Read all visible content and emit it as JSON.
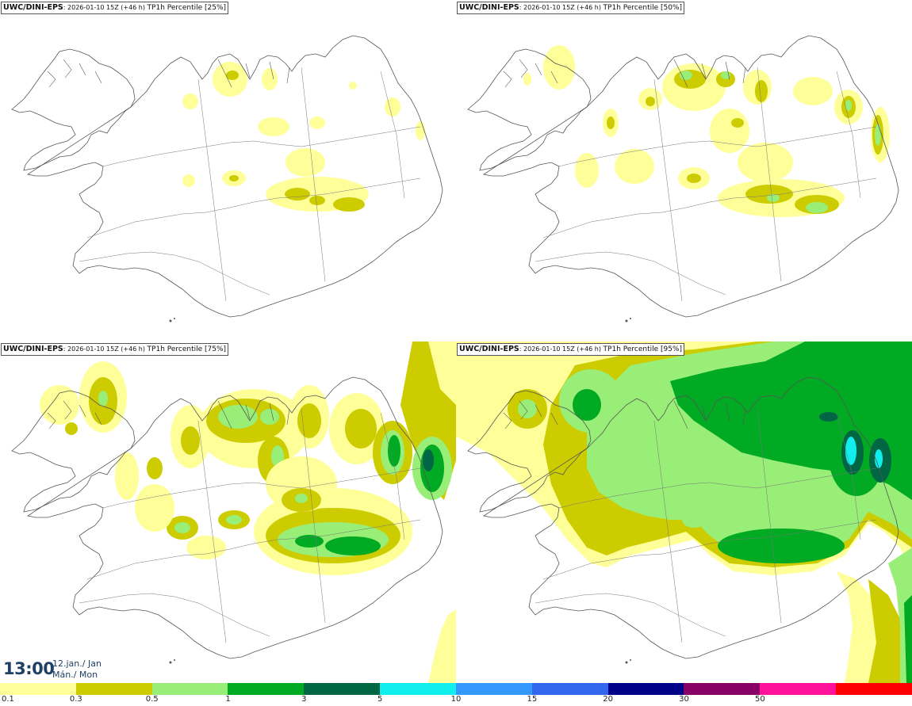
{
  "panels": [
    {
      "model": "UWC/DINI-EPS",
      "info": ": 2026-01-10 15Z (+46 h) ",
      "param": "TP1h Percentile [25%]"
    },
    {
      "model": "UWC/DINI-EPS",
      "info": ": 2026-01-10 15Z (+46 h) ",
      "param": "TP1h Percentile [50%]"
    },
    {
      "model": "UWC/DINI-EPS",
      "info": ": 2026-01-10 15Z (+46 h) ",
      "param": "TP1h Percentile [75%]"
    },
    {
      "model": "UWC/DINI-EPS",
      "info": ": 2026-01-10 15Z (+46 h) ",
      "param": "TP1h Percentile [95%]"
    }
  ],
  "timestamp": {
    "time": "13:00",
    "date": "12.jan./ Jan",
    "day": "Mán./ Mon"
  },
  "colorbar": {
    "colors": [
      "#ffff99",
      "#cccc00",
      "#99ee77",
      "#00aa22",
      "#006644",
      "#11eeee",
      "#3399ff",
      "#3366ee",
      "#000088",
      "#880066",
      "#ff1199",
      "#ff0000"
    ],
    "labels": [
      "0.1",
      "0.3",
      "0.5",
      "1",
      "3",
      "5",
      "10",
      "15",
      "20",
      "30",
      "50"
    ]
  },
  "colors": {
    "outline": "#555555",
    "title_text": "#111111",
    "time_text": "#1f3f63"
  }
}
